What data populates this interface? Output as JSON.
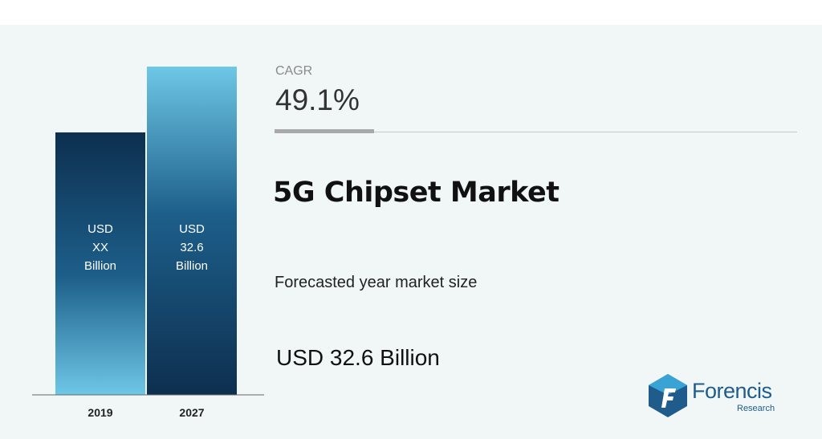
{
  "chart_data": {
    "type": "bar",
    "categories": [
      "2019",
      "2027"
    ],
    "bar_text": [
      [
        "USD",
        "XX",
        "Billion"
      ],
      [
        "USD",
        "32.6",
        "Billion"
      ]
    ],
    "bar_colors": [
      [
        "#0d2f4f",
        "#1d5f8a",
        "#6ec7e6"
      ],
      [
        "#0d2f4f",
        "#1d5f8a",
        "#6ec7e6"
      ]
    ]
  },
  "cagr": {
    "label": "CAGR",
    "value": "49.1%"
  },
  "title": "5G Chipset Market",
  "forecast": {
    "caption": "Forecasted year market size",
    "value": "USD 32.6 Billion"
  },
  "logo": {
    "word": "Forencis",
    "sub": "Research",
    "colors": [
      "#1f5c8c",
      "#3aa3d6"
    ]
  }
}
